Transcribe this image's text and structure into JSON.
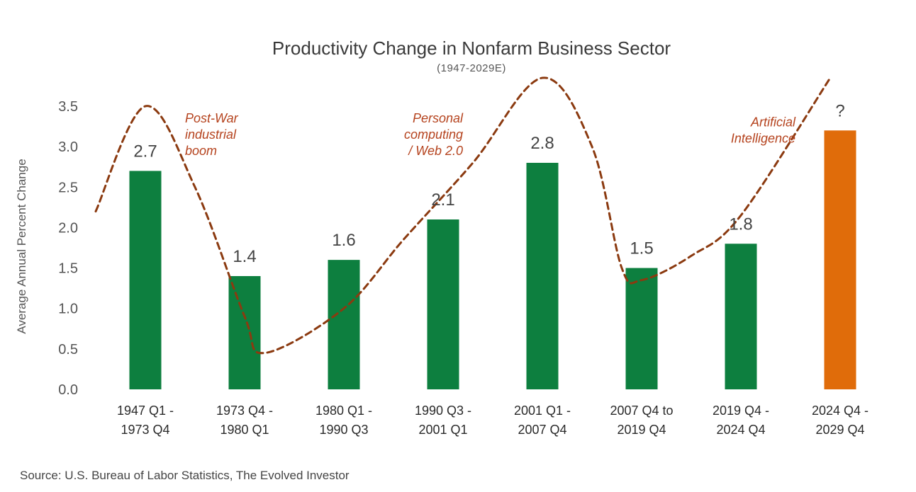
{
  "chart_data": {
    "type": "bar",
    "title": "Productivity Change in Nonfarm Business Sector",
    "subtitle": "(1947-2029E)",
    "ylabel": "Average Annual Percent Change",
    "xlabel": "",
    "ylim": [
      0,
      3.5
    ],
    "yticks": [
      "0.0",
      "0.5",
      "1.0",
      "1.5",
      "2.0",
      "2.5",
      "3.0",
      "3.5"
    ],
    "grid": false,
    "categories": [
      [
        "1947 Q1 -",
        "1973 Q4"
      ],
      [
        "1973 Q4 -",
        "1980 Q1"
      ],
      [
        "1980 Q1 -",
        "1990 Q3"
      ],
      [
        "1990 Q3 -",
        "2001 Q1"
      ],
      [
        "2001 Q1 -",
        "2007 Q4"
      ],
      [
        "2007 Q4 to",
        "2019 Q4"
      ],
      [
        "2019 Q4 -",
        "2024 Q4"
      ],
      [
        "2024 Q4 -",
        "2029 Q4"
      ]
    ],
    "values": [
      2.7,
      1.4,
      1.6,
      2.1,
      2.8,
      1.5,
      1.8,
      3.2
    ],
    "data_labels": [
      "2.7",
      "1.4",
      "1.6",
      "2.1",
      "2.8",
      "1.5",
      "1.8",
      "?"
    ],
    "bar_colors": [
      "#0d7f3f",
      "#0d7f3f",
      "#0d7f3f",
      "#0d7f3f",
      "#0d7f3f",
      "#0d7f3f",
      "#0d7f3f",
      "#e06c0a"
    ],
    "trend_line": {
      "style": "dashed",
      "color": "#8b3a10",
      "points": [
        [
          -0.5,
          2.2
        ],
        [
          0,
          3.5
        ],
        [
          0.5,
          2.5
        ],
        [
          1,
          0.9
        ],
        [
          1.2,
          0.45
        ],
        [
          2,
          1.0
        ],
        [
          2.6,
          1.85
        ],
        [
          3.3,
          2.8
        ],
        [
          4,
          3.85
        ],
        [
          4.5,
          3.0
        ],
        [
          4.8,
          1.5
        ],
        [
          5,
          1.35
        ],
        [
          5.5,
          1.65
        ],
        [
          6,
          2.15
        ],
        [
          6.9,
          3.85
        ]
      ]
    },
    "annotations": [
      {
        "lines": [
          "Post-War",
          "industrial",
          "boom"
        ],
        "x": 0.4,
        "y": 3.3,
        "align": "start"
      },
      {
        "lines": [
          "Personal",
          "computing",
          "/ Web 2.0"
        ],
        "x": 3.2,
        "y": 3.3,
        "align": "end"
      },
      {
        "lines": [
          "Artificial",
          "Intelligence"
        ],
        "x": 6.55,
        "y": 3.25,
        "align": "end"
      }
    ],
    "source": "Source: U.S. Bureau of Labor Statistics, The Evolved Investor"
  }
}
